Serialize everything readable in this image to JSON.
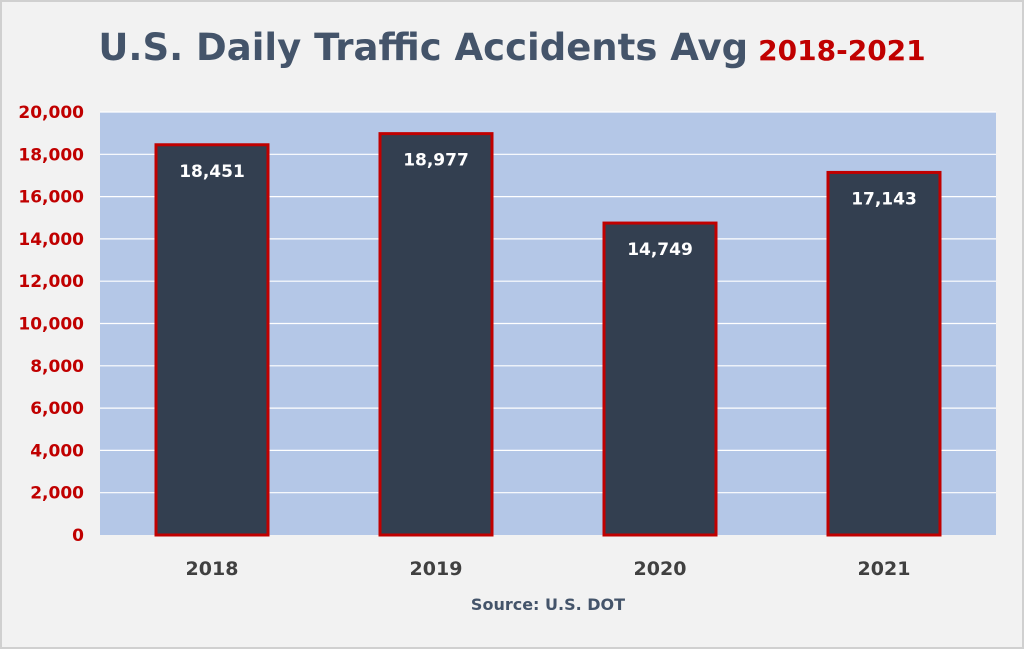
{
  "chart_data": {
    "type": "bar",
    "title": "U.S. Daily Traffic Accidents Avg",
    "subtitle": "2018-2021",
    "categories": [
      "2018",
      "2019",
      "2020",
      "2021"
    ],
    "values": [
      18451,
      18977,
      14749,
      17143
    ],
    "data_labels": [
      "18,451",
      "18,977",
      "14,749",
      "17,143"
    ],
    "ylim": [
      0,
      20000
    ],
    "yticks": [
      0,
      2000,
      4000,
      6000,
      8000,
      10000,
      12000,
      14000,
      16000,
      18000,
      20000
    ],
    "ytick_labels": [
      "0",
      "2,000",
      "4,000",
      "6,000",
      "8,000",
      "10,000",
      "12,000",
      "14,000",
      "16,000",
      "18,000",
      "20,000"
    ],
    "xlabel": "Source: U.S. DOT",
    "ylabel": "",
    "grid": true,
    "legend": "none",
    "colors": {
      "bar_fill": "#333f50",
      "bar_border": "#c00000",
      "plot_background": "#b4c7e7",
      "gridline": "#ffffff",
      "title": "#44546a",
      "subtitle": "#c00000",
      "ytick": "#c00000",
      "xtick": "#404040"
    }
  }
}
